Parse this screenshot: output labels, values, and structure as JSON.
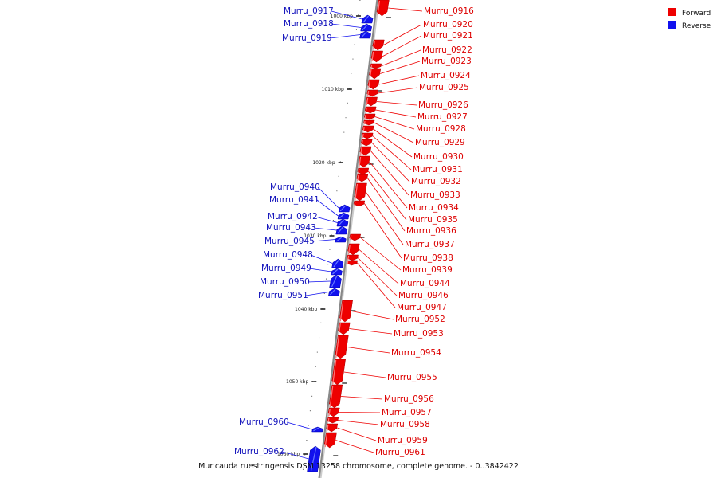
{
  "caption": "Muricauda ruestringensis DSM 13258 chromosome, complete genome. - 0..3842422",
  "legend": [
    {
      "label": "Forward",
      "color": "#ee0000"
    },
    {
      "label": "Reverse",
      "color": "#1111ee"
    }
  ],
  "colors": {
    "forward": "#ee0000",
    "reverse": "#1111ee",
    "backbone": "#888888"
  },
  "ticks": [
    {
      "label": "1000 kbp"
    },
    {
      "label": "1010 kbp"
    },
    {
      "label": "1020 kbp"
    },
    {
      "label": "1030 kbp"
    },
    {
      "label": "1040 kbp"
    },
    {
      "label": "1050 kbp"
    },
    {
      "label": "1060 kbp"
    }
  ],
  "genes": [
    {
      "name": "Murru_0916",
      "strand": "forward"
    },
    {
      "name": "Murru_0917",
      "strand": "reverse"
    },
    {
      "name": "Murru_0918",
      "strand": "reverse"
    },
    {
      "name": "Murru_0919",
      "strand": "reverse"
    },
    {
      "name": "Murru_0920",
      "strand": "forward"
    },
    {
      "name": "Murru_0921",
      "strand": "forward"
    },
    {
      "name": "Murru_0922",
      "strand": "forward"
    },
    {
      "name": "Murru_0923",
      "strand": "forward"
    },
    {
      "name": "Murru_0924",
      "strand": "forward"
    },
    {
      "name": "Murru_0925",
      "strand": "forward"
    },
    {
      "name": "Murru_0926",
      "strand": "forward"
    },
    {
      "name": "Murru_0927",
      "strand": "forward"
    },
    {
      "name": "Murru_0928",
      "strand": "forward"
    },
    {
      "name": "Murru_0929",
      "strand": "forward"
    },
    {
      "name": "Murru_0930",
      "strand": "forward"
    },
    {
      "name": "Murru_0931",
      "strand": "forward"
    },
    {
      "name": "Murru_0932",
      "strand": "forward"
    },
    {
      "name": "Murru_0933",
      "strand": "forward"
    },
    {
      "name": "Murru_0934",
      "strand": "forward"
    },
    {
      "name": "Murru_0935",
      "strand": "forward"
    },
    {
      "name": "Murru_0936",
      "strand": "forward"
    },
    {
      "name": "Murru_0937",
      "strand": "forward"
    },
    {
      "name": "Murru_0938",
      "strand": "forward"
    },
    {
      "name": "Murru_0939",
      "strand": "forward"
    },
    {
      "name": "Murru_0940",
      "strand": "reverse"
    },
    {
      "name": "Murru_0941",
      "strand": "reverse"
    },
    {
      "name": "Murru_0942",
      "strand": "reverse"
    },
    {
      "name": "Murru_0943",
      "strand": "reverse"
    },
    {
      "name": "Murru_0944",
      "strand": "forward"
    },
    {
      "name": "Murru_0945",
      "strand": "reverse"
    },
    {
      "name": "Murru_0946",
      "strand": "forward"
    },
    {
      "name": "Murru_0947",
      "strand": "forward"
    },
    {
      "name": "Murru_0948",
      "strand": "reverse"
    },
    {
      "name": "Murru_0949",
      "strand": "reverse"
    },
    {
      "name": "Murru_0950",
      "strand": "reverse"
    },
    {
      "name": "Murru_0951",
      "strand": "reverse"
    },
    {
      "name": "Murru_0952",
      "strand": "forward"
    },
    {
      "name": "Murru_0953",
      "strand": "forward"
    },
    {
      "name": "Murru_0954",
      "strand": "forward"
    },
    {
      "name": "Murru_0955",
      "strand": "forward"
    },
    {
      "name": "Murru_0956",
      "strand": "forward"
    },
    {
      "name": "Murru_0957",
      "strand": "forward"
    },
    {
      "name": "Murru_0958",
      "strand": "forward"
    },
    {
      "name": "Murru_0959",
      "strand": "forward"
    },
    {
      "name": "Murru_0960",
      "strand": "reverse"
    },
    {
      "name": "Murru_0961",
      "strand": "forward"
    },
    {
      "name": "Murru_0962",
      "strand": "reverse"
    }
  ]
}
